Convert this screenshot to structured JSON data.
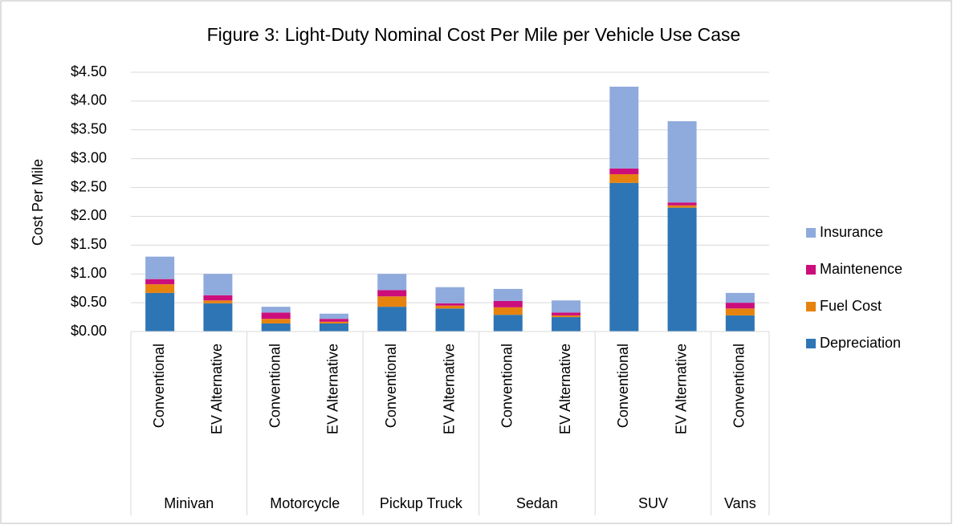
{
  "chart_data": {
    "type": "stacked_bar",
    "title": "Figure 3: Light-Duty Nominal Cost Per Mile per Vehicle Use Case",
    "y_label": "Cost Per Mile",
    "groups": [
      {
        "name": "Minivan",
        "categories": [
          "Conventional",
          "EV Alternative"
        ]
      },
      {
        "name": "Motorcycle",
        "categories": [
          "Conventional",
          "EV Alternative"
        ]
      },
      {
        "name": "Pickup Truck",
        "categories": [
          "Conventional",
          "EV Alternative"
        ]
      },
      {
        "name": "Sedan",
        "categories": [
          "Conventional",
          "EV Alternative"
        ]
      },
      {
        "name": "SUV",
        "categories": [
          "Conventional",
          "EV Alternative"
        ]
      },
      {
        "name": "Vans",
        "categories": [
          "Conventional"
        ]
      }
    ],
    "series": [
      {
        "name": "Depreciation",
        "color": "#2e75b6",
        "values": [
          0.67,
          0.49,
          0.14,
          0.14,
          0.43,
          0.4,
          0.29,
          0.25,
          2.58,
          2.15,
          0.28
        ]
      },
      {
        "name": "Fuel Cost",
        "color": "#e6820e",
        "values": [
          0.15,
          0.05,
          0.08,
          0.03,
          0.18,
          0.05,
          0.13,
          0.03,
          0.15,
          0.04,
          0.12
        ]
      },
      {
        "name": "Maintenence",
        "color": "#cc0e7d",
        "values": [
          0.09,
          0.09,
          0.11,
          0.05,
          0.11,
          0.04,
          0.11,
          0.05,
          0.1,
          0.05,
          0.1
        ]
      },
      {
        "name": "Insurance",
        "color": "#8faadc",
        "values": [
          0.39,
          0.37,
          0.1,
          0.09,
          0.28,
          0.28,
          0.21,
          0.21,
          1.42,
          1.41,
          0.17
        ]
      }
    ],
    "ylim": [
      0,
      4.5
    ],
    "yticks": [
      {
        "value": 0,
        "label": "$0.00"
      },
      {
        "value": 0.5,
        "label": "$0.50"
      },
      {
        "value": 1,
        "label": "$1.00"
      },
      {
        "value": 1.5,
        "label": "$1.50"
      },
      {
        "value": 2,
        "label": "$2.00"
      },
      {
        "value": 2.5,
        "label": "$2.50"
      },
      {
        "value": 3,
        "label": "$3.00"
      },
      {
        "value": 3.5,
        "label": "$3.50"
      },
      {
        "value": 4,
        "label": "$4.00"
      },
      {
        "value": 4.5,
        "label": "$4.50"
      }
    ],
    "grid": true,
    "legend": "right"
  }
}
